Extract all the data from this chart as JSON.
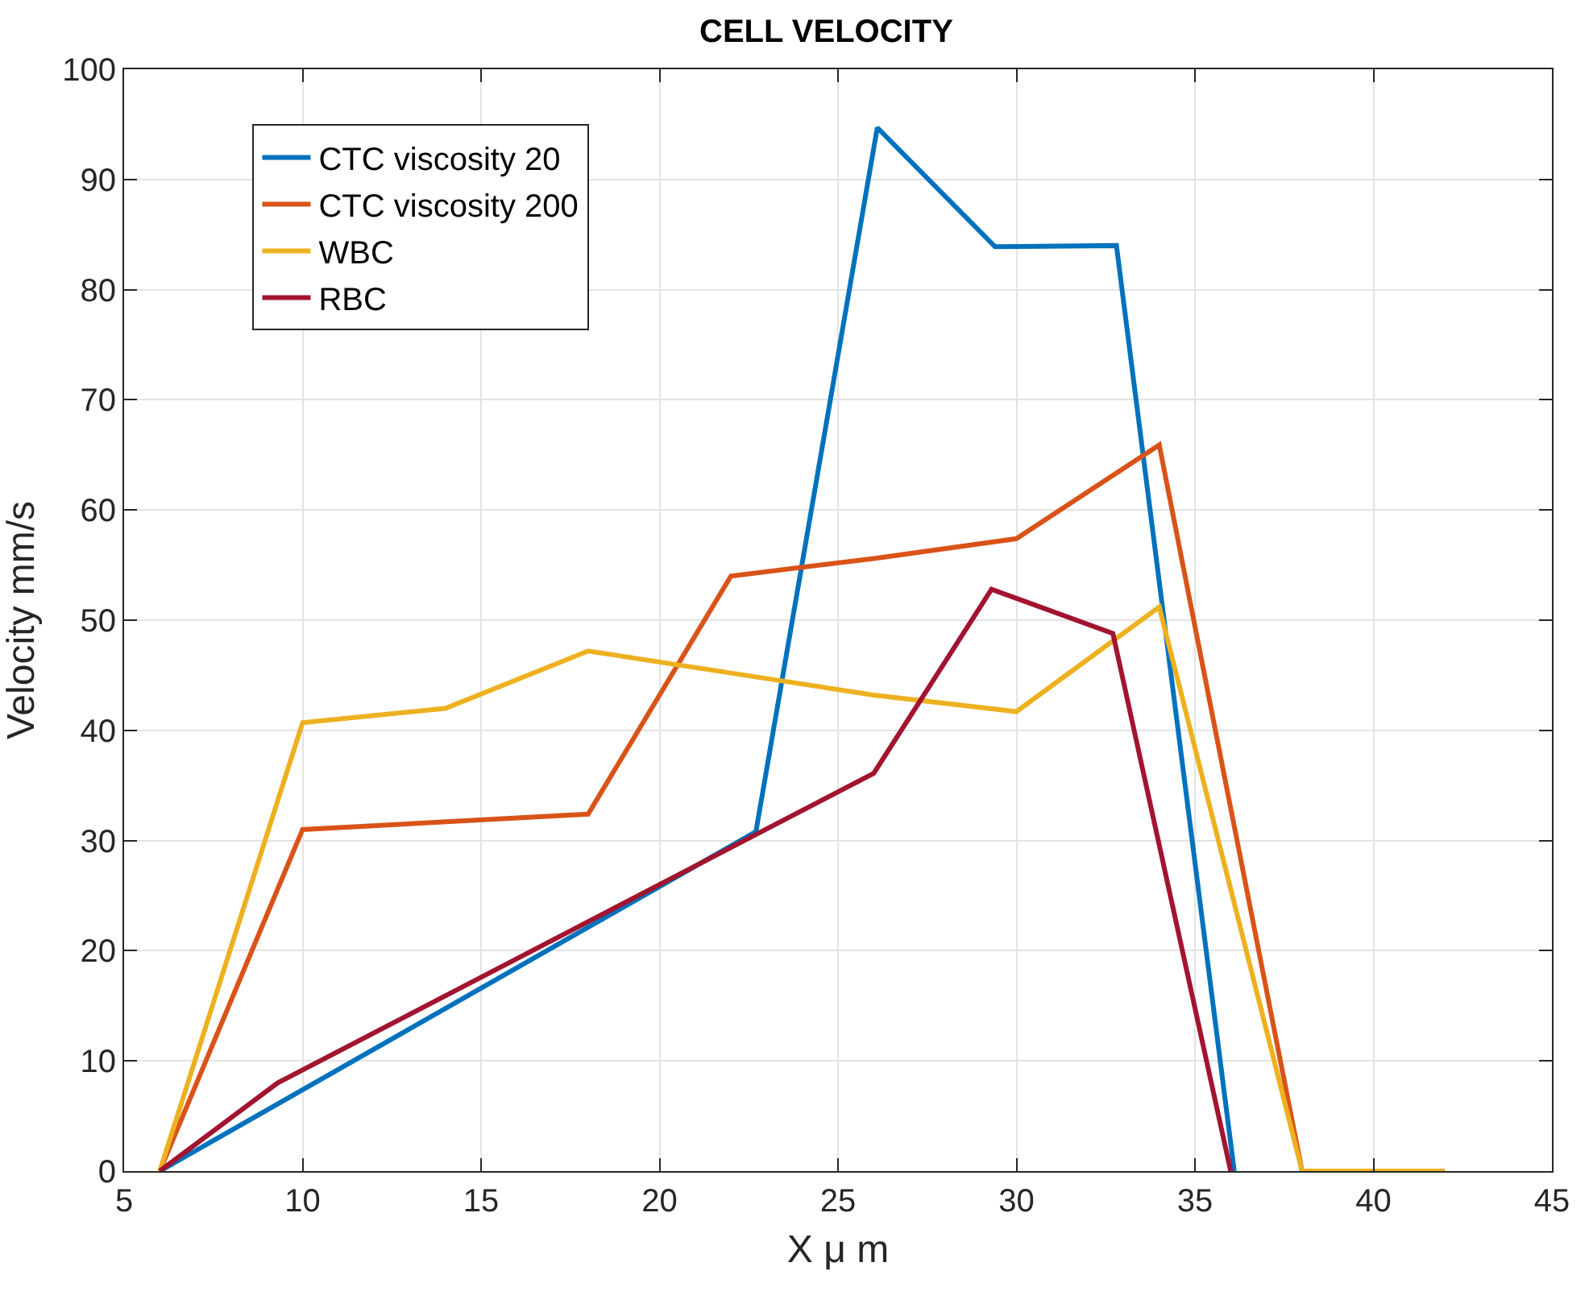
{
  "chart_data": {
    "type": "line",
    "title": "CELL VELOCITY",
    "xlabel": "X μ m",
    "ylabel": "Velocity mm/s",
    "xlim": [
      5,
      45
    ],
    "xticks": [
      5,
      10,
      15,
      20,
      25,
      30,
      35,
      40,
      45
    ],
    "ylim": [
      0,
      100
    ],
    "yticks": [
      0,
      10,
      20,
      30,
      40,
      50,
      60,
      70,
      80,
      90,
      100
    ],
    "grid": true,
    "legend": "top left",
    "marker": "none",
    "line_style": "solid",
    "series": [
      {
        "name": "CTC viscosity 20",
        "color": "#0072bd",
        "x": [
          6,
          22.7,
          26.1,
          29.4,
          32.8,
          36.1
        ],
        "values": [
          0,
          30.8,
          94.7,
          83.9,
          84,
          0
        ]
      },
      {
        "name": "CTC viscosity 200",
        "color": "#d95319",
        "x": [
          6,
          10,
          18,
          22,
          26,
          30,
          34,
          38,
          42
        ],
        "values": [
          0,
          31,
          32.4,
          54,
          55.6,
          57.4,
          65.9,
          0,
          0
        ]
      },
      {
        "name": "WBC",
        "color": "#edb120",
        "x": [
          6,
          10,
          14,
          18,
          22,
          26,
          30,
          34,
          38,
          42
        ],
        "values": [
          0,
          40.7,
          42,
          47.2,
          45.2,
          43.2,
          41.7,
          51.2,
          0,
          0
        ]
      },
      {
        "name": "RBC",
        "color": "#a2142f",
        "x": [
          6,
          9.3,
          26,
          29.3,
          32.7,
          36
        ],
        "values": [
          0,
          8,
          36.1,
          52.8,
          48.8,
          0
        ]
      }
    ]
  }
}
